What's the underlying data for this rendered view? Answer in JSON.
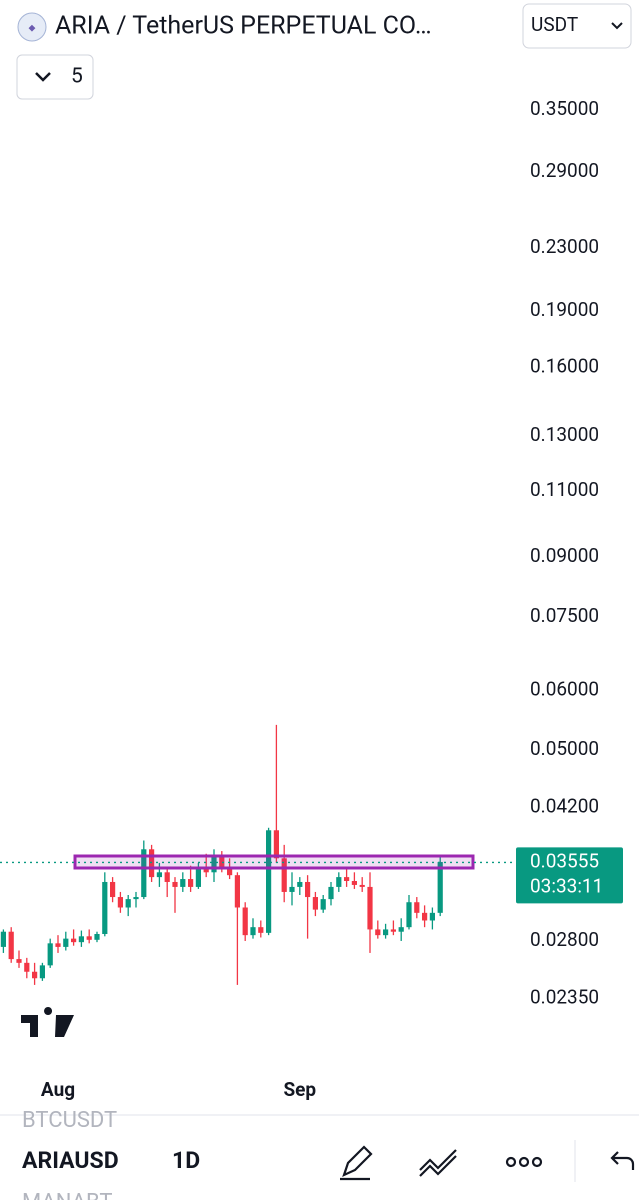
{
  "header": {
    "title": "ARIA / TetherUS PERPETUAL CO…",
    "currency": "USDT",
    "indicators": "5"
  },
  "chart_data": {
    "type": "candlestick",
    "y_scale": "log",
    "up_color": "#089981",
    "down_color": "#f23645",
    "ylim": [
      0.0195,
      0.372
    ],
    "yticks": [
      {
        "value": 0.35,
        "label": "0.35000"
      },
      {
        "value": 0.29,
        "label": "0.29000"
      },
      {
        "value": 0.23,
        "label": "0.23000"
      },
      {
        "value": 0.19,
        "label": "0.19000"
      },
      {
        "value": 0.16,
        "label": "0.16000"
      },
      {
        "value": 0.13,
        "label": "0.13000"
      },
      {
        "value": 0.11,
        "label": "0.11000"
      },
      {
        "value": 0.09,
        "label": "0.09000"
      },
      {
        "value": 0.075,
        "label": "0.07500"
      },
      {
        "value": 0.06,
        "label": "0.06000"
      },
      {
        "value": 0.05,
        "label": "0.05000"
      },
      {
        "value": 0.042,
        "label": "0.04200"
      },
      {
        "value": 0.028,
        "label": "0.02800"
      },
      {
        "value": 0.0235,
        "label": "0.02350"
      }
    ],
    "categories": [
      null,
      null,
      null,
      null,
      null,
      null,
      null,
      "Aug",
      null,
      null,
      null,
      null,
      null,
      null,
      null,
      null,
      null,
      null,
      null,
      null,
      null,
      null,
      null,
      null,
      null,
      null,
      null,
      null,
      null,
      null,
      null,
      null,
      null,
      null,
      null,
      null,
      null,
      null,
      "Sep",
      null,
      null,
      null,
      null,
      null,
      null,
      null,
      null,
      null,
      null,
      null,
      null,
      null,
      null,
      null,
      null,
      null,
      null
    ],
    "open": [
      0.0275,
      0.0288,
      0.0265,
      0.0262,
      0.0255,
      0.025,
      0.026,
      0.0278,
      0.0275,
      0.0282,
      0.0279,
      0.0284,
      0.0281,
      0.0286,
      0.0335,
      0.032,
      0.031,
      0.0318,
      0.032,
      0.037,
      0.034,
      0.0345,
      0.0335,
      0.033,
      0.0338,
      0.033,
      0.0348,
      0.0345,
      0.0362,
      0.035,
      0.0342,
      0.031,
      0.0285,
      0.0292,
      0.0287,
      0.0392,
      0.036,
      0.0325,
      0.033,
      0.0335,
      0.032,
      0.0308,
      0.0318,
      0.033,
      0.034,
      0.0336,
      0.0332,
      0.033,
      0.029,
      0.0285,
      0.029,
      0.0288,
      0.0292,
      0.0315,
      0.0305,
      0.0298,
      0.0305
    ],
    "high": [
      0.029,
      0.0292,
      0.0272,
      0.0266,
      0.0262,
      0.0262,
      0.0282,
      0.0285,
      0.0288,
      0.029,
      0.0289,
      0.029,
      0.0288,
      0.0345,
      0.034,
      0.0325,
      0.0322,
      0.0325,
      0.038,
      0.0375,
      0.0355,
      0.035,
      0.034,
      0.0345,
      0.0352,
      0.0355,
      0.0365,
      0.037,
      0.0368,
      0.036,
      0.0345,
      0.0315,
      0.03,
      0.0298,
      0.0395,
      0.054,
      0.0375,
      0.0345,
      0.034,
      0.0342,
      0.0325,
      0.0322,
      0.0335,
      0.0345,
      0.0348,
      0.0345,
      0.034,
      0.0345,
      0.0298,
      0.0295,
      0.0298,
      0.03,
      0.0322,
      0.032,
      0.0312,
      0.031,
      0.0362
    ],
    "low": [
      0.027,
      0.0262,
      0.0258,
      0.025,
      0.0245,
      0.0248,
      0.0258,
      0.027,
      0.0272,
      0.0276,
      0.0275,
      0.0278,
      0.0279,
      0.0284,
      0.0315,
      0.0305,
      0.0302,
      0.031,
      0.0318,
      0.0335,
      0.033,
      0.032,
      0.0305,
      0.0325,
      0.0325,
      0.0328,
      0.034,
      0.0335,
      0.0345,
      0.0338,
      0.0245,
      0.028,
      0.0282,
      0.0283,
      0.0285,
      0.0355,
      0.0315,
      0.0312,
      0.0322,
      0.0282,
      0.0302,
      0.0305,
      0.0312,
      0.0325,
      0.033,
      0.0328,
      0.0325,
      0.027,
      0.0282,
      0.0282,
      0.0285,
      0.028,
      0.029,
      0.03,
      0.0292,
      0.029,
      0.0302
    ],
    "close": [
      0.0288,
      0.0265,
      0.0262,
      0.0255,
      0.025,
      0.026,
      0.0278,
      0.0275,
      0.0282,
      0.0279,
      0.0284,
      0.0281,
      0.0286,
      0.0335,
      0.032,
      0.031,
      0.0318,
      0.032,
      0.037,
      0.034,
      0.0345,
      0.0335,
      0.033,
      0.0338,
      0.033,
      0.0348,
      0.0345,
      0.0362,
      0.035,
      0.0342,
      0.031,
      0.0285,
      0.0292,
      0.0287,
      0.0392,
      0.036,
      0.0325,
      0.033,
      0.0335,
      0.032,
      0.0308,
      0.0318,
      0.033,
      0.034,
      0.0336,
      0.0332,
      0.033,
      0.029,
      0.0285,
      0.029,
      0.0288,
      0.0292,
      0.0315,
      0.0305,
      0.0298,
      0.0305,
      0.0356
    ],
    "last_price": 0.03555,
    "countdown": "03:33:11"
  },
  "footer": {
    "symbols": [
      "BTCUSDT",
      "ARIAUSD",
      "MANABT"
    ],
    "interval": "1D"
  }
}
